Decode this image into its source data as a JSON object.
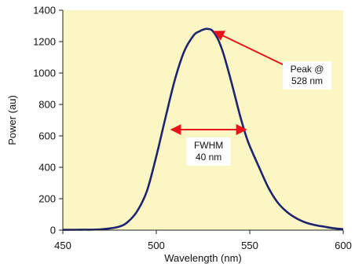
{
  "chart_data": {
    "type": "line",
    "title": "",
    "xlabel": "Wavelength (nm)",
    "ylabel": "Power (au)",
    "xlim": [
      450,
      600
    ],
    "ylim": [
      0,
      1400
    ],
    "x_ticks": [
      450,
      500,
      550,
      600
    ],
    "y_ticks": [
      0,
      200,
      400,
      600,
      800,
      1000,
      1200,
      1400
    ],
    "grid": false,
    "legend": "none",
    "colors": {
      "plot_background": "#fbf7c4",
      "line": "#1f2370",
      "annotation_arrow": "#e8141c"
    },
    "series": [
      {
        "x": [
          450,
          460,
          470,
          480,
          485,
          490,
          495,
          500,
          505,
          510,
          515,
          520,
          523,
          526,
          528,
          530,
          533,
          536,
          540,
          545,
          548,
          550,
          555,
          560,
          565,
          570,
          575,
          580,
          585,
          590,
          595,
          600
        ],
        "values": [
          2,
          3,
          5,
          22,
          55,
          125,
          250,
          470,
          720,
          960,
          1140,
          1240,
          1265,
          1280,
          1280,
          1270,
          1215,
          1120,
          950,
          720,
          600,
          535,
          400,
          270,
          175,
          115,
          75,
          48,
          32,
          22,
          12,
          6
        ]
      }
    ],
    "annotations": [
      {
        "lines": [
          "Peak @",
          "528 nm"
        ],
        "x": 528,
        "y": 1280
      },
      {
        "lines": [
          "FWHM",
          "40 nm"
        ],
        "x_range": [
          508,
          548
        ],
        "y": 640
      }
    ]
  }
}
